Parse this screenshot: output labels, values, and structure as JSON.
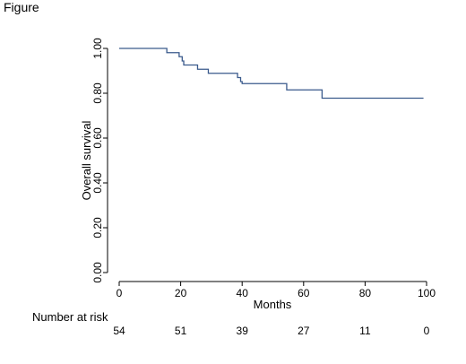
{
  "figure_label": "Figure",
  "chart_data": {
    "type": "line",
    "title": "",
    "xlabel": "Months",
    "ylabel": "Overall survival",
    "xlim": [
      0,
      100
    ],
    "ylim": [
      0,
      1
    ],
    "grid": false,
    "x_ticks": [
      0,
      20,
      40,
      60,
      80,
      100
    ],
    "y_ticks": [
      "0.00",
      "0.20",
      "0.40",
      "0.60",
      "0.80",
      "1.00"
    ],
    "line_color": "#3a5a8c",
    "series": [
      {
        "step": true,
        "x": [
          0,
          15.5,
          19.5,
          20.5,
          21,
          25.5,
          29,
          38.5,
          39.5,
          40,
          54.5,
          66,
          99
        ],
        "y": [
          1.0,
          0.981,
          0.963,
          0.944,
          0.926,
          0.907,
          0.889,
          0.87,
          0.852,
          0.843,
          0.815,
          0.778,
          0.778
        ]
      }
    ],
    "risk_table": {
      "label": "Number at risk",
      "times": [
        0,
        20,
        40,
        60,
        80,
        100
      ],
      "counts": [
        "54",
        "51",
        "39",
        "27",
        "11",
        "0"
      ]
    }
  }
}
